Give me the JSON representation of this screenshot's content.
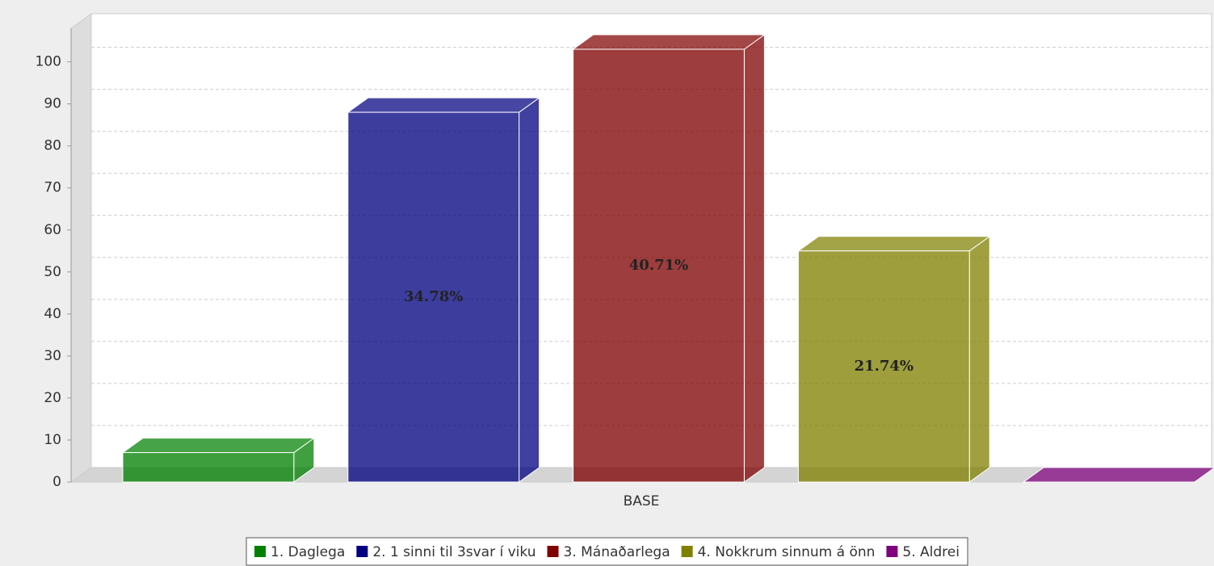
{
  "chart_data": {
    "type": "bar3d",
    "categories": [
      "BASE"
    ],
    "series": [
      {
        "name": "1. Daglega",
        "color": "#008000",
        "values": [
          7
        ]
      },
      {
        "name": "2. 1 sinni til 3svar í viku",
        "color": "#000080",
        "values": [
          88
        ],
        "label": "34.78%"
      },
      {
        "name": "3. Mánaðarlega",
        "color": "#800000",
        "values": [
          103
        ],
        "label": "40.71%"
      },
      {
        "name": "4. Nokkrum sinnum á önn",
        "color": "#808000",
        "values": [
          55
        ],
        "label": "21.74%"
      },
      {
        "name": "5. Aldrei",
        "color": "#800080",
        "values": [
          0
        ]
      }
    ],
    "ylim": [
      0,
      108
    ],
    "yticks": [
      0,
      10,
      20,
      30,
      40,
      50,
      60,
      70,
      80,
      90,
      100
    ],
    "grid": true,
    "legend": "bottom"
  }
}
